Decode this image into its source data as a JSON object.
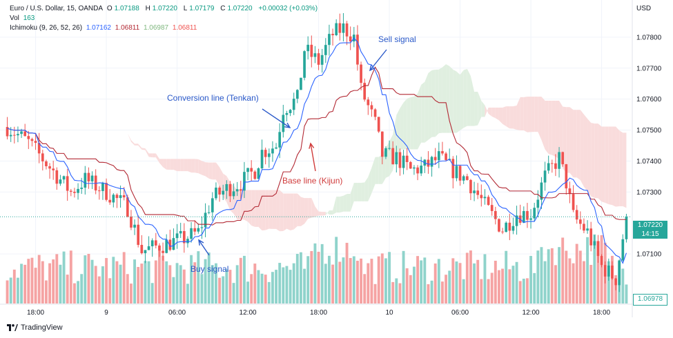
{
  "header": {
    "symbol": "Euro / U.S. Dollar, 15, OANDA",
    "o_label": "O",
    "o": "1.07188",
    "h_label": "H",
    "h": "1.07220",
    "l_label": "L",
    "l": "1.07179",
    "c_label": "C",
    "c": "1.07220",
    "change": "+0.00032 (+0.03%)",
    "vol_label": "Vol",
    "vol": "163",
    "ichi_label": "Ichimoku (9, 26, 52, 26)",
    "ichi_v1": "1.07162",
    "ichi_v2": "1.06811",
    "ichi_v3": "1.06987",
    "ichi_v4": "1.06811"
  },
  "currency": "USD",
  "price_tag": {
    "price": "1.07220",
    "countdown": "14:15"
  },
  "low_tag": "1.06978",
  "branding": "TradingView",
  "annotations": {
    "sell": "Sell signal",
    "conversion": "Conversion line (Tenkan)",
    "base": "Base line (Kijun)",
    "buy": "Buy signal"
  },
  "colors": {
    "up": "#26a69a",
    "down": "#ef5350",
    "up_vol": "#8fd3cb",
    "down_vol": "#f5a3a3",
    "tenkan": "#2962ff",
    "kijun": "#b22833",
    "cloud_bull": "#e0efe0",
    "cloud_bear": "#f9dcdc",
    "ann_blue": "#2a59c9",
    "ann_red": "#d03b3b"
  },
  "chart_data": {
    "type": "candlestick",
    "title": "Euro / U.S. Dollar, 15, OANDA",
    "ylabel": "USD",
    "ylim": [
      1.0694,
      1.0792
    ],
    "y_ticks": [
      1.078,
      1.077,
      1.076,
      1.075,
      1.074,
      1.073,
      1.071
    ],
    "y_tick_labels": [
      "1.07800",
      "1.07700",
      "1.07600",
      "1.07500",
      "1.07400",
      "1.07300",
      "1.07100"
    ],
    "x_tick_labels": [
      "18:00",
      "9",
      "06:00",
      "12:00",
      "18:00",
      "10",
      "06:00",
      "12:00",
      "18:00"
    ],
    "x_tick_bar_index": [
      8,
      28,
      48,
      68,
      88,
      108,
      128,
      148,
      168
    ],
    "bar_count": 176,
    "close_path_keypoints": [
      [
        0,
        1.0751
      ],
      [
        6,
        1.0746
      ],
      [
        12,
        1.0738
      ],
      [
        18,
        1.073
      ],
      [
        22,
        1.0734
      ],
      [
        28,
        1.073
      ],
      [
        34,
        1.0725
      ],
      [
        38,
        1.0711
      ],
      [
        44,
        1.0713
      ],
      [
        50,
        1.0715
      ],
      [
        54,
        1.0717
      ],
      [
        58,
        1.0728
      ],
      [
        62,
        1.0731
      ],
      [
        66,
        1.0733
      ],
      [
        70,
        1.0737
      ],
      [
        72,
        1.0743
      ],
      [
        76,
        1.0745
      ],
      [
        78,
        1.0757
      ],
      [
        82,
        1.076
      ],
      [
        84,
        1.0776
      ],
      [
        88,
        1.0772
      ],
      [
        92,
        1.0781
      ],
      [
        95,
        1.0783
      ],
      [
        98,
        1.078
      ],
      [
        100,
        1.0763
      ],
      [
        104,
        1.0752
      ],
      [
        106,
        1.0742
      ],
      [
        110,
        1.0741
      ],
      [
        114,
        1.0737
      ],
      [
        118,
        1.0738
      ],
      [
        122,
        1.0741
      ],
      [
        126,
        1.0737
      ],
      [
        130,
        1.0734
      ],
      [
        136,
        1.0724
      ],
      [
        140,
        1.0718
      ],
      [
        144,
        1.0723
      ],
      [
        148,
        1.0723
      ],
      [
        152,
        1.0735
      ],
      [
        156,
        1.0741
      ],
      [
        158,
        1.0733
      ],
      [
        160,
        1.0722
      ],
      [
        164,
        1.0717
      ],
      [
        168,
        1.0706
      ],
      [
        172,
        1.0702
      ],
      [
        175,
        1.0722
      ]
    ],
    "tenkan": "Conversion line (Tenkan)",
    "kijun": "Base line (Kijun)",
    "annotations": [
      "Sell signal",
      "Conversion line (Tenkan)",
      "Base line (Kijun)",
      "Buy signal"
    ],
    "last_price": 1.0722,
    "low_marker": 1.06978
  }
}
